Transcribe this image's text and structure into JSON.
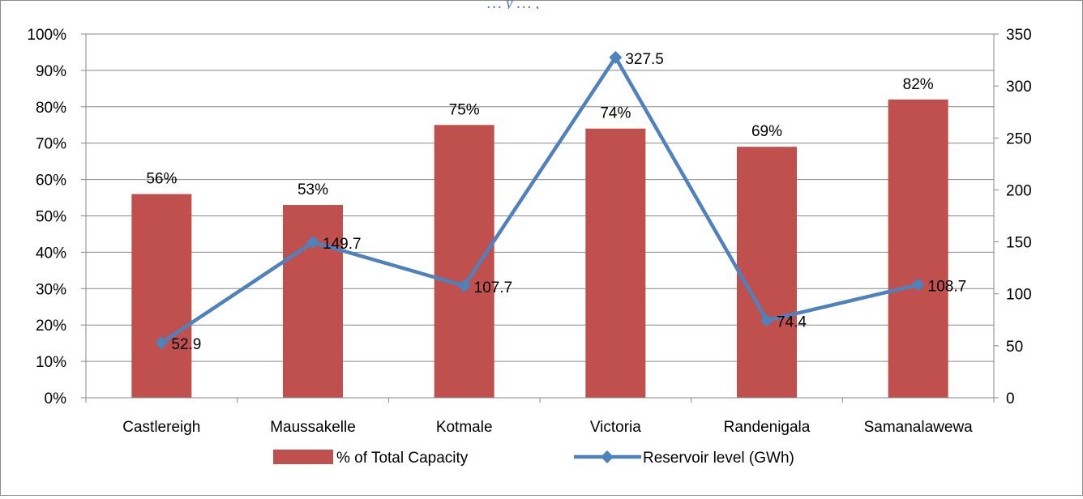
{
  "chart_data": {
    "type": "bar+line",
    "title_fragment": "… y … ,",
    "categories": [
      "Castlereigh",
      "Maussakelle",
      "Kotmale",
      "Victoria",
      "Randenigala",
      "Samanalawewa"
    ],
    "series": [
      {
        "name": "% of Total Capacity",
        "type": "bar",
        "axis": "left",
        "values": [
          56,
          53,
          75,
          74,
          69,
          82
        ],
        "labels": [
          "56%",
          "53%",
          "75%",
          "74%",
          "69%",
          "82%"
        ],
        "color": "#c0504d"
      },
      {
        "name": "Reservoir level (GWh)",
        "type": "line",
        "axis": "right",
        "marker": "diamond",
        "values": [
          52.9,
          149.7,
          107.7,
          327.5,
          74.4,
          108.7
        ],
        "labels": [
          "52.9",
          "149.7",
          "107.7",
          "327.5",
          "74.4",
          "108.7"
        ],
        "color": "#4f81bd"
      }
    ],
    "y_left": {
      "min": 0,
      "max": 100,
      "step": 10,
      "ticks": [
        "0%",
        "10%",
        "20%",
        "30%",
        "40%",
        "50%",
        "60%",
        "70%",
        "80%",
        "90%",
        "100%"
      ]
    },
    "y_right": {
      "min": 0,
      "max": 350,
      "step": 50,
      "ticks": [
        "0",
        "50",
        "100",
        "150",
        "200",
        "250",
        "300",
        "350"
      ]
    },
    "grid": true,
    "legend_position": "bottom"
  }
}
